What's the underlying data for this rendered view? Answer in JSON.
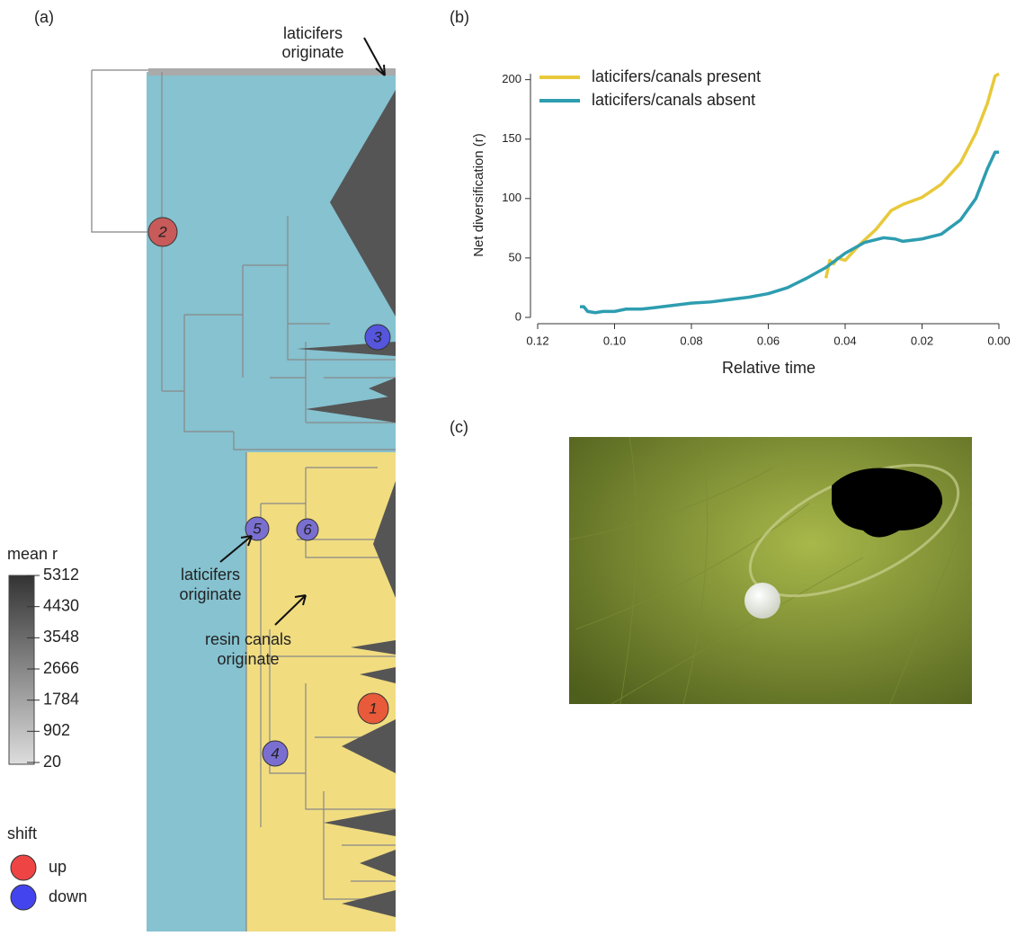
{
  "panel_a": {
    "label": "(a)",
    "top_note": [
      "laticifers",
      "originate"
    ],
    "note_latex": [
      "laticifers",
      "originate"
    ],
    "note_resin": [
      "resin canals",
      "originate"
    ],
    "nodes": [
      "2",
      "3",
      "5",
      "6",
      "1",
      "4"
    ],
    "colorbar": {
      "title": "mean r",
      "ticks": [
        "5312",
        "4430",
        "3548",
        "2666",
        "1784",
        "902",
        "20"
      ]
    },
    "shift_legend": {
      "title": "shift",
      "up": "up",
      "down": "down"
    }
  },
  "panel_c": {
    "label": "(c)"
  },
  "chart_data": {
    "type": "line",
    "label": "(b)",
    "xlabel": "Relative time",
    "ylabel": "Net diversification (r)",
    "xlim": [
      0.12,
      0
    ],
    "ylim": [
      0,
      205
    ],
    "xticks": [
      0.12,
      {
        "value": 0.1,
        "label": "0.10"
      },
      0.08,
      0.06,
      0.04,
      0.02,
      {
        "value": 0,
        "label": "0.00"
      }
    ],
    "yticks": [
      0,
      50,
      100,
      150,
      200
    ],
    "legend": "top-left",
    "series": [
      {
        "name": "laticifers/canals present",
        "color": "#e8c93a",
        "x": [
          0.045,
          0.044,
          0.043,
          0.042,
          0.04,
          0.038,
          0.036,
          0.034,
          0.032,
          0.03,
          0.028,
          0.025,
          0.02,
          0.015,
          0.01,
          0.006,
          0.003,
          0.001,
          0
        ],
        "values": [
          33,
          48,
          45,
          50,
          48,
          55,
          62,
          68,
          74,
          82,
          90,
          95,
          101,
          112,
          130,
          155,
          180,
          203,
          205
        ]
      },
      {
        "name": "laticifers/canals absent",
        "color": "#2e9db0",
        "x": [
          0.109,
          0.108,
          0.107,
          0.105,
          0.103,
          0.1,
          0.097,
          0.093,
          0.09,
          0.085,
          0.08,
          0.075,
          0.07,
          0.065,
          0.06,
          0.055,
          0.05,
          0.045,
          0.04,
          0.035,
          0.03,
          0.027,
          0.025,
          0.02,
          0.015,
          0.01,
          0.006,
          0.003,
          0.001,
          0
        ],
        "values": [
          9,
          9,
          5,
          4,
          5,
          5,
          7,
          7,
          8,
          10,
          12,
          13,
          15,
          17,
          20,
          25,
          33,
          42,
          54,
          63,
          67,
          66,
          64,
          66,
          70,
          82,
          100,
          125,
          139,
          139
        ]
      }
    ]
  }
}
